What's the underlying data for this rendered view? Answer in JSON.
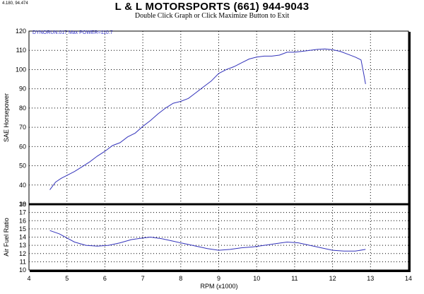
{
  "header": {
    "coord_readout": "4.180, 94.474",
    "title": "L & L MOTORSPORTS  (661) 944-9043",
    "subtitle": "Double Click Graph or Click Maximize Button to Exit"
  },
  "chart_data": [
    {
      "type": "line",
      "panel": "power",
      "title": "",
      "xlabel": "",
      "ylabel": "SAE Horsepower",
      "ylim": [
        30,
        120
      ],
      "yticks": [
        30,
        40,
        50,
        60,
        70,
        80,
        90,
        100,
        110,
        120
      ],
      "xlim": [
        4,
        14
      ],
      "run_label": "DYNORUN.017  Max POWER=110.7",
      "line_color": "#3333bb",
      "series": [
        {
          "x": [
            4.55,
            4.7,
            4.85,
            5.0,
            5.2,
            5.4,
            5.6,
            5.8,
            6.0,
            6.2,
            6.4,
            6.6,
            6.8,
            7.0,
            7.2,
            7.4,
            7.6,
            7.8,
            8.0,
            8.2,
            8.4,
            8.6,
            8.8,
            9.0,
            9.2,
            9.4,
            9.6,
            9.8,
            10.0,
            10.2,
            10.4,
            10.6,
            10.8,
            11.0,
            11.2,
            11.4,
            11.6,
            11.8,
            12.0,
            12.2,
            12.4,
            12.6,
            12.75,
            12.82,
            12.87
          ],
          "y": [
            37.5,
            41.5,
            43.5,
            45,
            47,
            49.5,
            52,
            55,
            57.5,
            60.5,
            62,
            65,
            67,
            70.5,
            73.5,
            77,
            80,
            82.5,
            83.5,
            85,
            88,
            91,
            94,
            98,
            100,
            101.5,
            103.5,
            105.5,
            106.5,
            107,
            107,
            107.5,
            109,
            109,
            109.5,
            110,
            110.5,
            110.7,
            110.3,
            109.5,
            108,
            106.5,
            105,
            98,
            92.5
          ]
        }
      ]
    },
    {
      "type": "line",
      "panel": "air-fuel",
      "title": "",
      "xlabel": "RPM (x1000)",
      "ylabel": "Air Fuel Ratio",
      "ylim": [
        10,
        18
      ],
      "yticks": [
        10,
        11,
        12,
        13,
        14,
        15,
        16,
        17,
        18
      ],
      "xlim": [
        4,
        14
      ],
      "xticks": [
        4,
        5,
        6,
        7,
        8,
        9,
        10,
        11,
        12,
        13,
        14
      ],
      "line_color": "#3333bb",
      "series": [
        {
          "x": [
            4.55,
            4.8,
            5.0,
            5.2,
            5.5,
            5.8,
            6.1,
            6.4,
            6.7,
            7.0,
            7.2,
            7.5,
            7.8,
            8.1,
            8.4,
            8.7,
            9.0,
            9.3,
            9.6,
            9.9,
            10.2,
            10.5,
            10.8,
            11.1,
            11.4,
            11.7,
            12.0,
            12.3,
            12.6,
            12.87
          ],
          "y": [
            14.8,
            14.4,
            13.9,
            13.4,
            13.0,
            12.9,
            13.0,
            13.3,
            13.7,
            13.9,
            14.0,
            13.8,
            13.5,
            13.2,
            12.9,
            12.6,
            12.4,
            12.5,
            12.7,
            12.8,
            13.0,
            13.2,
            13.4,
            13.3,
            13.0,
            12.7,
            12.4,
            12.3,
            12.3,
            12.5
          ]
        }
      ]
    }
  ]
}
